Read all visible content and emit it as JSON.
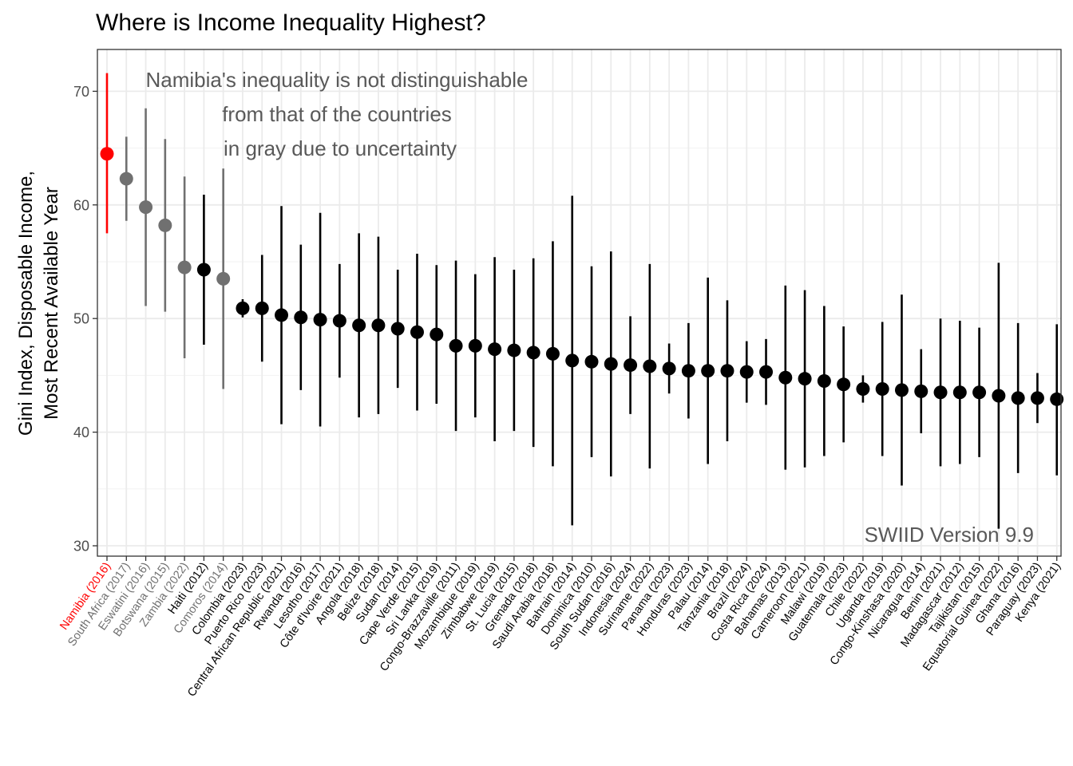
{
  "chart_data": {
    "type": "scatter",
    "title": "Where is Income Inequality Highest?",
    "ylabel_lines": [
      "Gini Index, Disposable Income,",
      "Most Recent Available Year"
    ],
    "xlabel": "",
    "ylim": [
      29.3,
      73.6
    ],
    "yticks": [
      30,
      40,
      50,
      60,
      70
    ],
    "grid": true,
    "legend": "none",
    "annotation_lines": [
      "Namibia's inequality is not distinguishable",
      "from that of the countries",
      "in gray due to uncertainty"
    ],
    "corner_note": "SWIID Version 9.9",
    "colors": {
      "highlight": "#ff0000",
      "indistinguishable": "#707070",
      "other": "#000000"
    },
    "points": [
      {
        "label": "Namibia (2016)",
        "value": 64.5,
        "low": 57.5,
        "high": 71.6,
        "group": "highlight"
      },
      {
        "label": "South Africa (2017)",
        "value": 62.3,
        "low": 58.6,
        "high": 66.0,
        "group": "indistinguishable"
      },
      {
        "label": "Eswatini (2016)",
        "value": 59.8,
        "low": 51.1,
        "high": 68.5,
        "group": "indistinguishable"
      },
      {
        "label": "Botswana (2015)",
        "value": 58.2,
        "low": 50.6,
        "high": 65.8,
        "group": "indistinguishable"
      },
      {
        "label": "Zambia (2022)",
        "value": 54.5,
        "low": 46.5,
        "high": 62.5,
        "group": "indistinguishable"
      },
      {
        "label": "Haiti (2012)",
        "value": 54.3,
        "low": 47.7,
        "high": 60.9,
        "group": "other"
      },
      {
        "label": "Comoros (2014)",
        "value": 53.5,
        "low": 43.8,
        "high": 63.2,
        "group": "indistinguishable"
      },
      {
        "label": "Colombia (2023)",
        "value": 50.9,
        "low": 50.1,
        "high": 51.7,
        "group": "other"
      },
      {
        "label": "Puerto Rico (2023)",
        "value": 50.9,
        "low": 46.2,
        "high": 55.6,
        "group": "other"
      },
      {
        "label": "Central African Republic (2021)",
        "value": 50.3,
        "low": 40.7,
        "high": 59.9,
        "group": "other"
      },
      {
        "label": "Rwanda (2016)",
        "value": 50.1,
        "low": 43.7,
        "high": 56.5,
        "group": "other"
      },
      {
        "label": "Lesotho (2017)",
        "value": 49.9,
        "low": 40.5,
        "high": 59.3,
        "group": "other"
      },
      {
        "label": "Côte d'Ivoire (2021)",
        "value": 49.8,
        "low": 44.8,
        "high": 54.8,
        "group": "other"
      },
      {
        "label": "Angola (2018)",
        "value": 49.4,
        "low": 41.3,
        "high": 57.5,
        "group": "other"
      },
      {
        "label": "Belize (2018)",
        "value": 49.4,
        "low": 41.6,
        "high": 57.2,
        "group": "other"
      },
      {
        "label": "Sudan (2014)",
        "value": 49.1,
        "low": 43.9,
        "high": 54.3,
        "group": "other"
      },
      {
        "label": "Cape Verde (2015)",
        "value": 48.8,
        "low": 41.9,
        "high": 55.7,
        "group": "other"
      },
      {
        "label": "Sri Lanka (2019)",
        "value": 48.6,
        "low": 42.5,
        "high": 54.7,
        "group": "other"
      },
      {
        "label": "Congo-Brazzaville (2011)",
        "value": 47.6,
        "low": 40.1,
        "high": 55.1,
        "group": "other"
      },
      {
        "label": "Mozambique (2019)",
        "value": 47.6,
        "low": 41.3,
        "high": 53.9,
        "group": "other"
      },
      {
        "label": "Zimbabwe (2019)",
        "value": 47.3,
        "low": 39.2,
        "high": 55.4,
        "group": "other"
      },
      {
        "label": "St. Lucia (2015)",
        "value": 47.2,
        "low": 40.1,
        "high": 54.3,
        "group": "other"
      },
      {
        "label": "Grenada (2018)",
        "value": 47.0,
        "low": 38.7,
        "high": 55.3,
        "group": "other"
      },
      {
        "label": "Saudi Arabia (2018)",
        "value": 46.9,
        "low": 37.0,
        "high": 56.8,
        "group": "other"
      },
      {
        "label": "Bahrain (2014)",
        "value": 46.3,
        "low": 31.8,
        "high": 60.8,
        "group": "other"
      },
      {
        "label": "Dominica (2010)",
        "value": 46.2,
        "low": 37.8,
        "high": 54.6,
        "group": "other"
      },
      {
        "label": "South Sudan (2016)",
        "value": 46.0,
        "low": 36.1,
        "high": 55.9,
        "group": "other"
      },
      {
        "label": "Indonesia (2024)",
        "value": 45.9,
        "low": 41.6,
        "high": 50.2,
        "group": "other"
      },
      {
        "label": "Suriname (2022)",
        "value": 45.8,
        "low": 36.8,
        "high": 54.8,
        "group": "other"
      },
      {
        "label": "Panama (2023)",
        "value": 45.6,
        "low": 43.4,
        "high": 47.8,
        "group": "other"
      },
      {
        "label": "Honduras (2023)",
        "value": 45.4,
        "low": 41.2,
        "high": 49.6,
        "group": "other"
      },
      {
        "label": "Palau (2014)",
        "value": 45.4,
        "low": 37.2,
        "high": 53.6,
        "group": "other"
      },
      {
        "label": "Tanzania (2018)",
        "value": 45.4,
        "low": 39.2,
        "high": 51.6,
        "group": "other"
      },
      {
        "label": "Brazil (2024)",
        "value": 45.3,
        "low": 42.6,
        "high": 48.0,
        "group": "other"
      },
      {
        "label": "Costa Rica (2024)",
        "value": 45.3,
        "low": 42.4,
        "high": 48.2,
        "group": "other"
      },
      {
        "label": "Bahamas (2013)",
        "value": 44.8,
        "low": 36.7,
        "high": 52.9,
        "group": "other"
      },
      {
        "label": "Cameroon (2021)",
        "value": 44.7,
        "low": 36.9,
        "high": 52.5,
        "group": "other"
      },
      {
        "label": "Malawi (2019)",
        "value": 44.5,
        "low": 37.9,
        "high": 51.1,
        "group": "other"
      },
      {
        "label": "Guatemala (2023)",
        "value": 44.2,
        "low": 39.1,
        "high": 49.3,
        "group": "other"
      },
      {
        "label": "Chile (2022)",
        "value": 43.8,
        "low": 42.6,
        "high": 45.0,
        "group": "other"
      },
      {
        "label": "Uganda (2019)",
        "value": 43.8,
        "low": 37.9,
        "high": 49.7,
        "group": "other"
      },
      {
        "label": "Congo-Kinshasa (2020)",
        "value": 43.7,
        "low": 35.3,
        "high": 52.1,
        "group": "other"
      },
      {
        "label": "Nicaragua (2014)",
        "value": 43.6,
        "low": 39.9,
        "high": 47.3,
        "group": "other"
      },
      {
        "label": "Benin (2021)",
        "value": 43.5,
        "low": 37.0,
        "high": 50.0,
        "group": "other"
      },
      {
        "label": "Madagascar (2012)",
        "value": 43.5,
        "low": 37.2,
        "high": 49.8,
        "group": "other"
      },
      {
        "label": "Tajikistan (2015)",
        "value": 43.5,
        "low": 37.8,
        "high": 49.2,
        "group": "other"
      },
      {
        "label": "Equatorial Guinea (2022)",
        "value": 43.2,
        "low": 31.5,
        "high": 54.9,
        "group": "other"
      },
      {
        "label": "Ghana (2016)",
        "value": 43.0,
        "low": 36.4,
        "high": 49.6,
        "group": "other"
      },
      {
        "label": "Paraguay (2023)",
        "value": 43.0,
        "low": 40.8,
        "high": 45.2,
        "group": "other"
      },
      {
        "label": "Kenya (2021)",
        "value": 42.9,
        "low": 36.2,
        "high": 49.5,
        "group": "other"
      }
    ]
  }
}
